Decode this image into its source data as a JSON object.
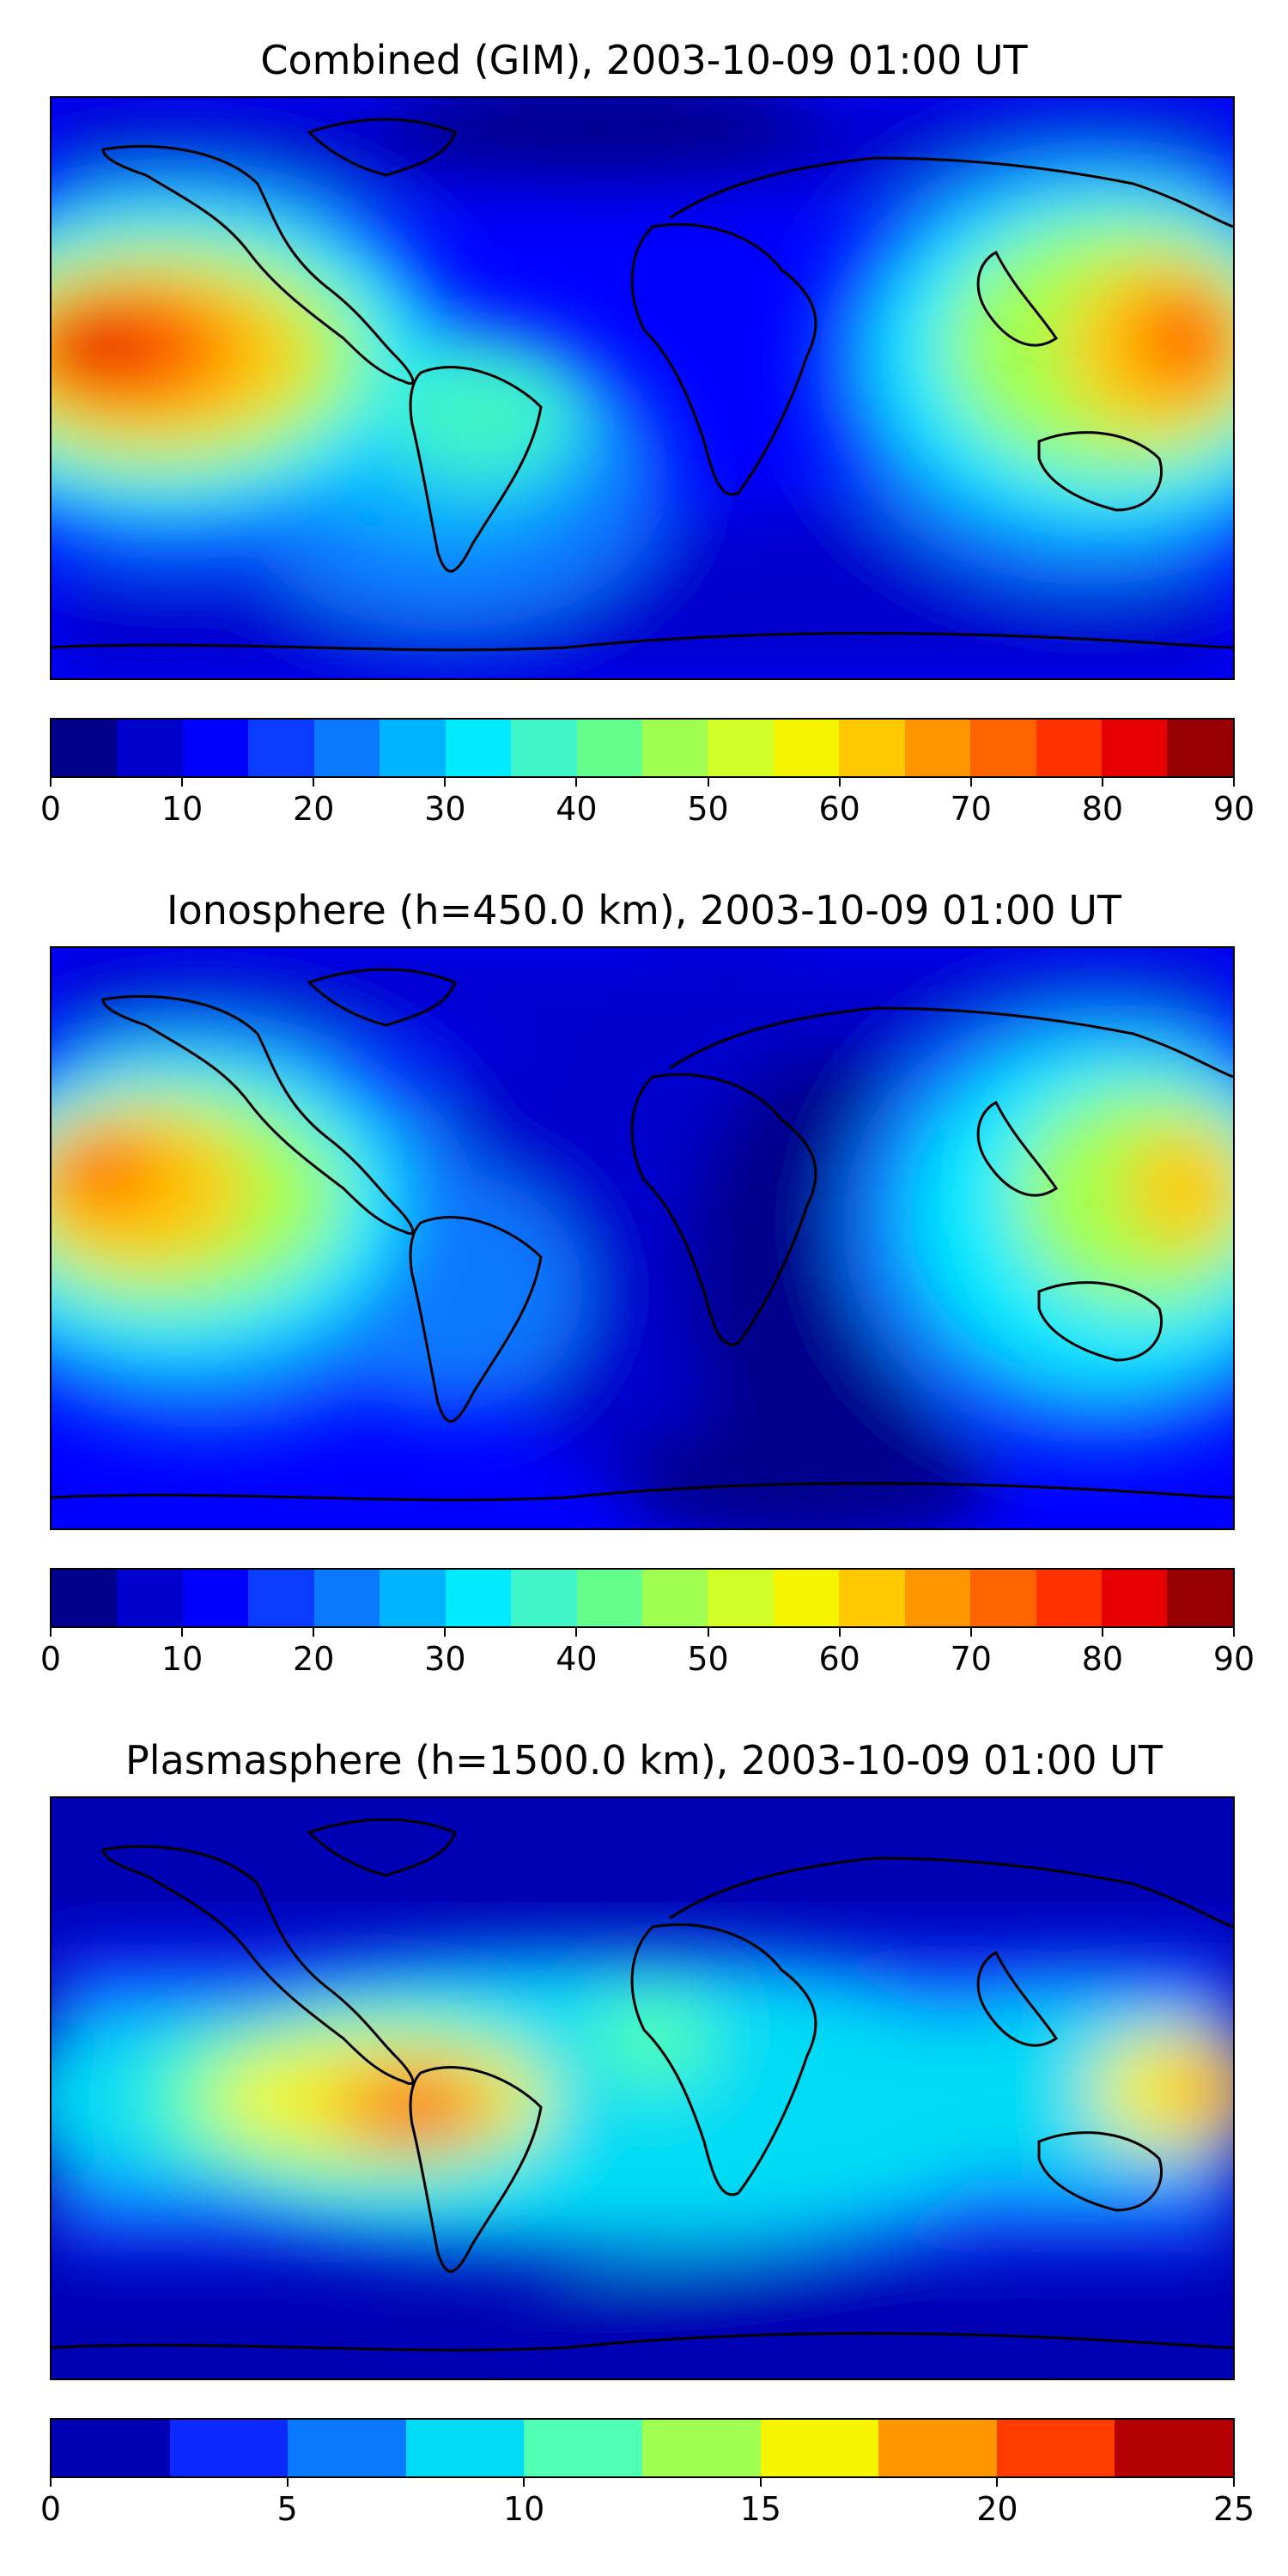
{
  "panels": [
    {
      "title": "Combined (GIM), 2003-10-09 01:00 UT",
      "colorbar": {
        "min": 0,
        "max": 90,
        "step": 5,
        "ticks": [
          "0",
          "10",
          "20",
          "30",
          "40",
          "50",
          "60",
          "70",
          "80",
          "90"
        ]
      }
    },
    {
      "title": "Ionosphere  (h=450.0 km), 2003-10-09 01:00 UT",
      "colorbar": {
        "min": 0,
        "max": 90,
        "step": 5,
        "ticks": [
          "0",
          "10",
          "20",
          "30",
          "40",
          "50",
          "60",
          "70",
          "80",
          "90"
        ]
      }
    },
    {
      "title": "Plasmasphere (h=1500.0 km), 2003-10-09 01:00 UT",
      "colorbar": {
        "min": 0,
        "max": 25,
        "step": 2.5,
        "ticks": [
          "0",
          "5",
          "10",
          "15",
          "20",
          "25"
        ]
      }
    }
  ],
  "colormap": {
    "jet18": [
      "#00008b",
      "#0000cd",
      "#0000ff",
      "#0a3cff",
      "#0a78ff",
      "#00b4ff",
      "#00ebff",
      "#40f5c8",
      "#64ff8c",
      "#a0ff50",
      "#d2ff28",
      "#f5f500",
      "#ffc800",
      "#ff9600",
      "#ff6400",
      "#ff3200",
      "#e60000",
      "#960000"
    ],
    "jet10": [
      "#0000b4",
      "#0a28ff",
      "#0a78ff",
      "#00dcf5",
      "#50ffb4",
      "#a0ff50",
      "#f5f500",
      "#ff9600",
      "#ff3c00",
      "#b40000"
    ]
  }
}
